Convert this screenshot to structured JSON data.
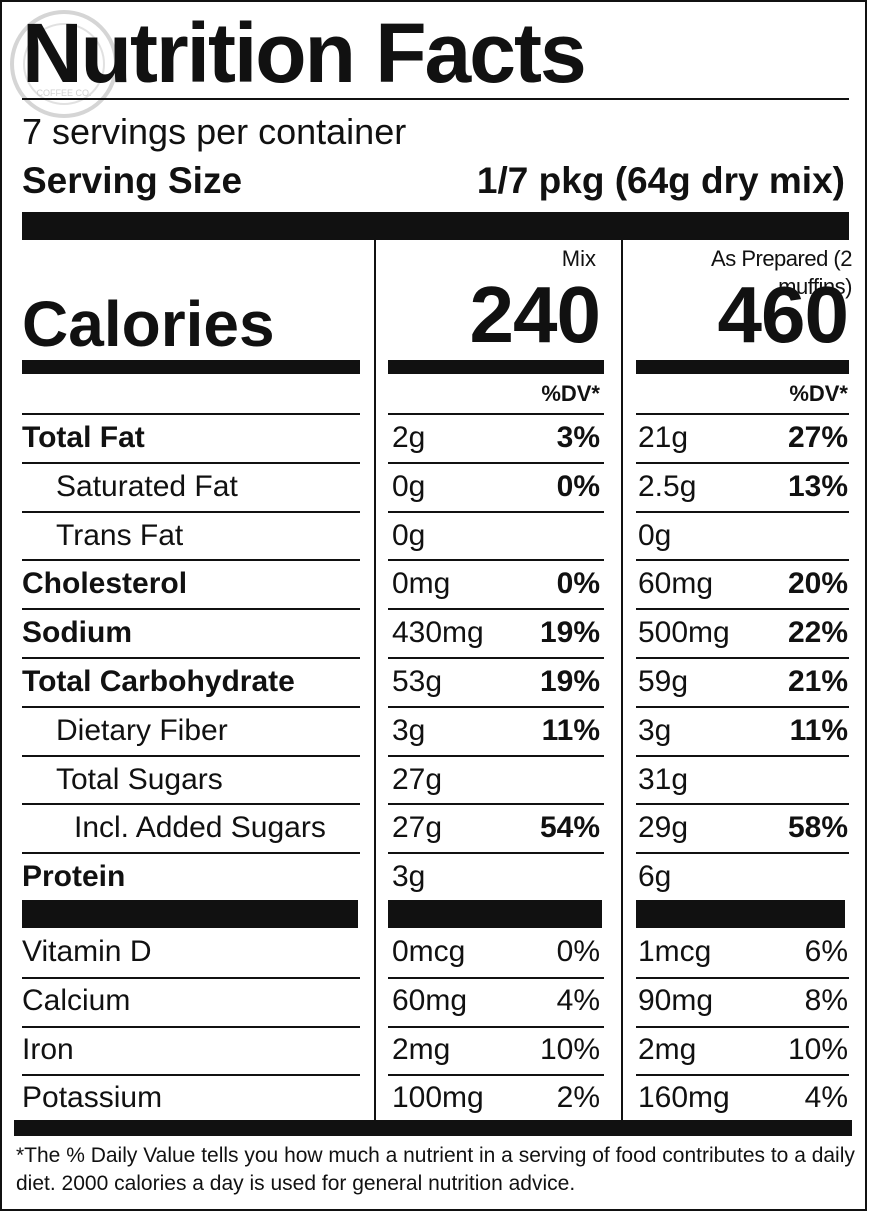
{
  "title": "Nutrition Facts",
  "servings_per_container": "7 servings per container",
  "serving_size_label": "Serving Size",
  "serving_size_value": "1/7 pkg (64g dry mix)",
  "columns": {
    "mix_header": "Mix",
    "prepared_header": "As Prepared (2 muffins)",
    "dv_header": "%DV*"
  },
  "calories": {
    "label": "Calories",
    "mix": "240",
    "prepared": "460"
  },
  "nutrients": [
    {
      "name": "Total Fat",
      "bold": true,
      "indent": 0,
      "mix_amt": "2g",
      "mix_dv": "3%",
      "prep_amt": "21g",
      "prep_dv": "27%"
    },
    {
      "name": "Saturated Fat",
      "bold": false,
      "indent": 1,
      "mix_amt": "0g",
      "mix_dv": "0%",
      "prep_amt": "2.5g",
      "prep_dv": "13%"
    },
    {
      "name": "Trans Fat",
      "bold": false,
      "indent": 1,
      "mix_amt": "0g",
      "mix_dv": "",
      "prep_amt": "0g",
      "prep_dv": ""
    },
    {
      "name": "Cholesterol",
      "bold": true,
      "indent": 0,
      "mix_amt": "0mg",
      "mix_dv": "0%",
      "prep_amt": "60mg",
      "prep_dv": "20%"
    },
    {
      "name": "Sodium",
      "bold": true,
      "indent": 0,
      "mix_amt": "430mg",
      "mix_dv": "19%",
      "prep_amt": "500mg",
      "prep_dv": "22%"
    },
    {
      "name": "Total Carbohydrate",
      "bold": true,
      "indent": 0,
      "mix_amt": "53g",
      "mix_dv": "19%",
      "prep_amt": "59g",
      "prep_dv": "21%"
    },
    {
      "name": "Dietary Fiber",
      "bold": false,
      "indent": 1,
      "mix_amt": "3g",
      "mix_dv": "11%",
      "prep_amt": "3g",
      "prep_dv": "11%"
    },
    {
      "name": "Total Sugars",
      "bold": false,
      "indent": 1,
      "mix_amt": "27g",
      "mix_dv": "",
      "prep_amt": "31g",
      "prep_dv": ""
    },
    {
      "name": "Incl. Added Sugars",
      "bold": false,
      "indent": 2,
      "mix_amt": "27g",
      "mix_dv": "54%",
      "prep_amt": "29g",
      "prep_dv": "58%"
    },
    {
      "name": "Protein",
      "bold": true,
      "indent": 0,
      "mix_amt": "3g",
      "mix_dv": "",
      "prep_amt": "6g",
      "prep_dv": ""
    }
  ],
  "vitamins": [
    {
      "name": "Vitamin D",
      "mix_amt": "0mcg",
      "mix_dv": "0%",
      "prep_amt": "1mcg",
      "prep_dv": "6%"
    },
    {
      "name": "Calcium",
      "mix_amt": "60mg",
      "mix_dv": "4%",
      "prep_amt": "90mg",
      "prep_dv": "8%"
    },
    {
      "name": "Iron",
      "mix_amt": "2mg",
      "mix_dv": "10%",
      "prep_amt": "2mg",
      "prep_dv": "10%"
    },
    {
      "name": "Potassium",
      "mix_amt": "100mg",
      "mix_dv": "2%",
      "prep_amt": "160mg",
      "prep_dv": "4%"
    }
  ],
  "footnote": "*The % Daily Value tells you how much a nutrient in a serving of food contributes to a daily diet. 2000 calories a day is used for general nutrition advice.",
  "logo_text": "COFFEE CO."
}
